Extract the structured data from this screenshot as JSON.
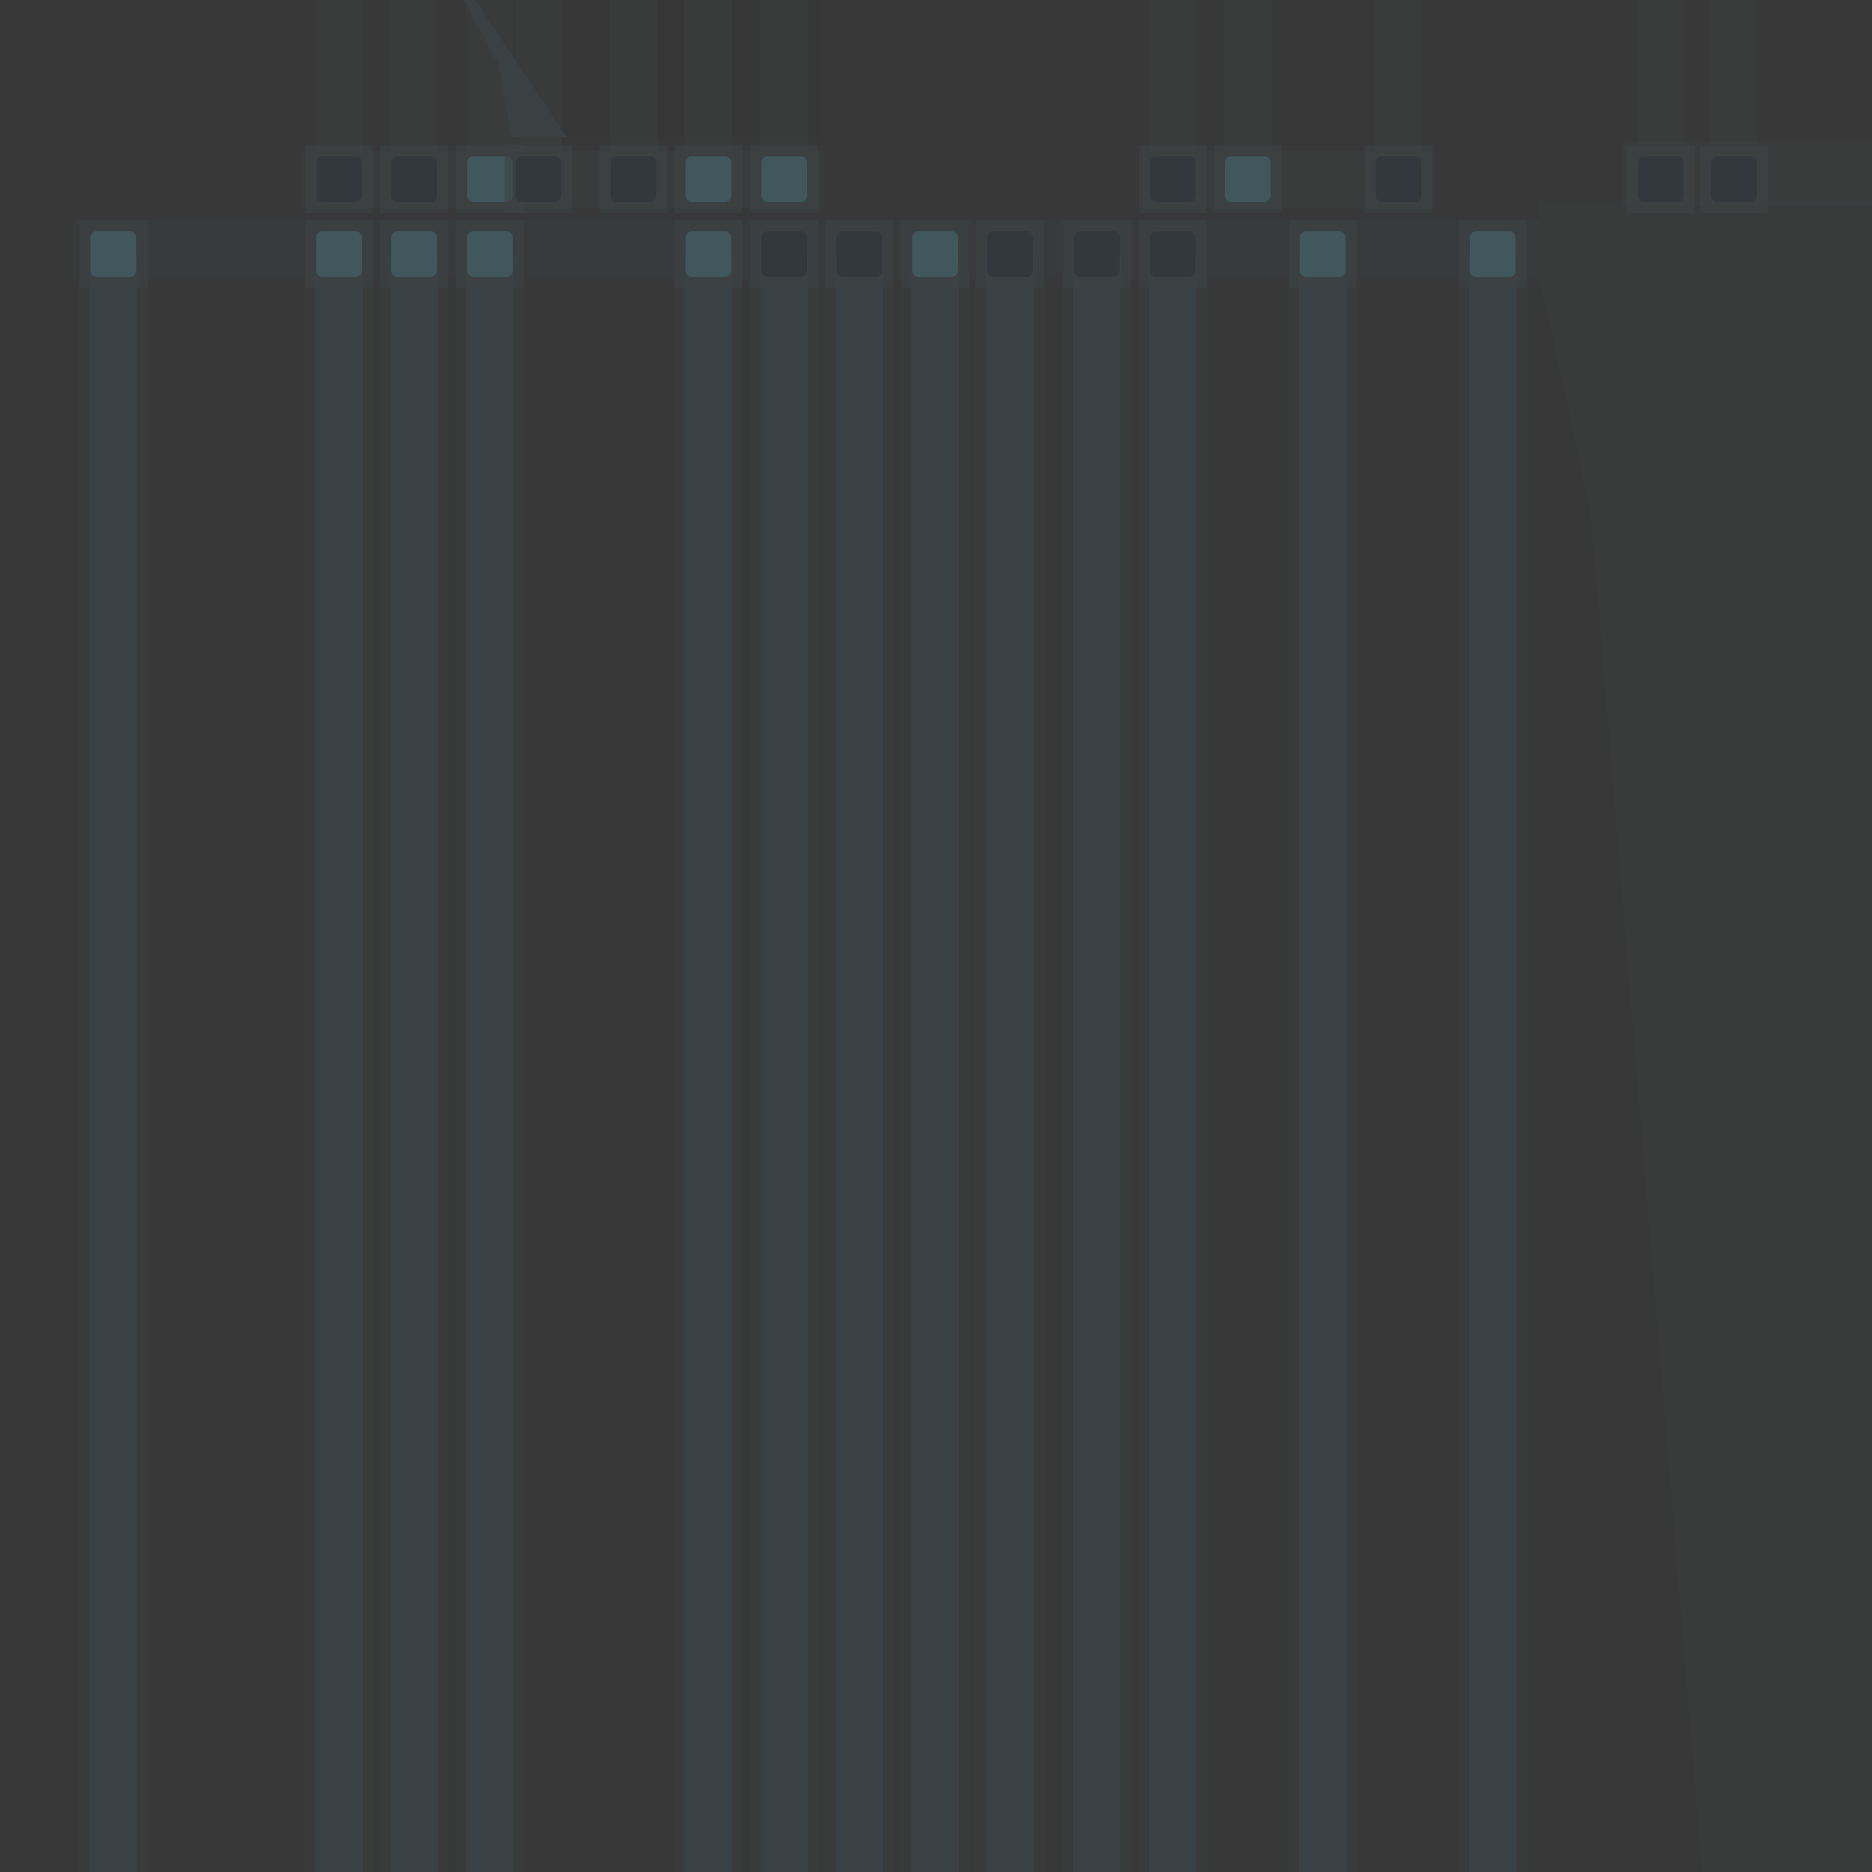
{
  "palette": {
    "background": "#383838",
    "band": "#3a4144",
    "band_edge": "#3c3f40",
    "square_teal": "#40575c",
    "square_dark": "#33383c",
    "square_halo": "#3d4244",
    "wedge_light": "#3b3c3c",
    "wedge_dark": "#363637"
  },
  "columns_lower": [
    {
      "lit": true
    },
    {
      "lit": true
    },
    {
      "lit": true
    },
    {
      "lit": true
    },
    {
      "lit": true
    },
    {
      "lit": false
    },
    {
      "lit": false
    },
    {
      "lit": true
    },
    {
      "lit": false
    },
    {
      "lit": false
    },
    {
      "lit": false
    },
    {
      "lit": true
    },
    {
      "lit": true
    }
  ],
  "columns_upper": [
    {
      "lit": false
    },
    {
      "lit": false
    },
    {
      "lit": true
    },
    {
      "lit": false
    },
    {
      "lit": false
    },
    {
      "lit": true
    },
    {
      "lit": true
    },
    {
      "lit": false
    },
    {
      "lit": true
    },
    {
      "lit": false
    },
    {
      "lit": false
    },
    {
      "lit": false
    }
  ]
}
